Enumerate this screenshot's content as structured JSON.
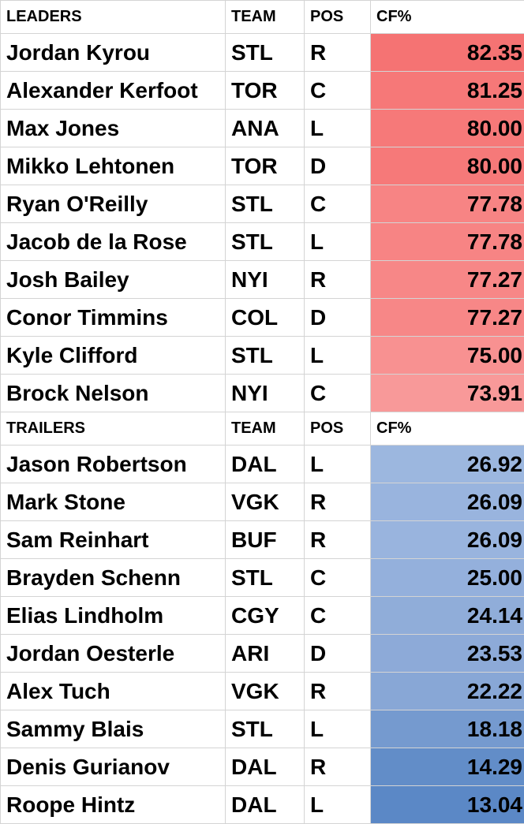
{
  "leaders": {
    "header": {
      "name": "LEADERS",
      "team": "TEAM",
      "pos": "POS",
      "cf": "CF%"
    },
    "rows": [
      {
        "name": "Jordan Kyrou",
        "team": "STL",
        "pos": "R",
        "cf": "82.35",
        "color": "#f57373"
      },
      {
        "name": "Alexander Kerfoot",
        "team": "TOR",
        "pos": "C",
        "cf": "81.25",
        "color": "#f67878"
      },
      {
        "name": "Max Jones",
        "team": "ANA",
        "pos": "L",
        "cf": "80.00",
        "color": "#f67979"
      },
      {
        "name": "Mikko Lehtonen",
        "team": "TOR",
        "pos": "D",
        "cf": "80.00",
        "color": "#f67979"
      },
      {
        "name": "Ryan O'Reilly",
        "team": "STL",
        "pos": "C",
        "cf": "77.78",
        "color": "#f78484"
      },
      {
        "name": "Jacob de la Rose",
        "team": "STL",
        "pos": "L",
        "cf": "77.78",
        "color": "#f78484"
      },
      {
        "name": "Josh Bailey",
        "team": "NYI",
        "pos": "R",
        "cf": "77.27",
        "color": "#f78787"
      },
      {
        "name": "Conor Timmins",
        "team": "COL",
        "pos": "D",
        "cf": "77.27",
        "color": "#f78787"
      },
      {
        "name": "Kyle Clifford",
        "team": "STL",
        "pos": "L",
        "cf": "75.00",
        "color": "#f89191"
      },
      {
        "name": "Brock Nelson",
        "team": "NYI",
        "pos": "C",
        "cf": "73.91",
        "color": "#f89999"
      }
    ]
  },
  "trailers": {
    "header": {
      "name": "TRAILERS",
      "team": "TEAM",
      "pos": "POS",
      "cf": "CF%"
    },
    "rows": [
      {
        "name": "Jason Robertson",
        "team": "DAL",
        "pos": "L",
        "cf": "26.92",
        "color": "#9cb7df"
      },
      {
        "name": "Mark Stone",
        "team": "VGK",
        "pos": "R",
        "cf": "26.09",
        "color": "#99b4de"
      },
      {
        "name": "Sam Reinhart",
        "team": "BUF",
        "pos": "R",
        "cf": "26.09",
        "color": "#99b4de"
      },
      {
        "name": "Brayden Schenn",
        "team": "STL",
        "pos": "C",
        "cf": "25.00",
        "color": "#94b0dc"
      },
      {
        "name": "Elias Lindholm",
        "team": "CGY",
        "pos": "C",
        "cf": "24.14",
        "color": "#90add9"
      },
      {
        "name": "Jordan Oesterle",
        "team": "ARI",
        "pos": "D",
        "cf": "23.53",
        "color": "#8daad8"
      },
      {
        "name": "Alex Tuch",
        "team": "VGK",
        "pos": "R",
        "cf": "22.22",
        "color": "#88a7d6"
      },
      {
        "name": "Sammy Blais",
        "team": "STL",
        "pos": "L",
        "cf": "18.18",
        "color": "#759acf"
      },
      {
        "name": "Denis Gurianov",
        "team": "DAL",
        "pos": "R",
        "cf": "14.29",
        "color": "#628dc8"
      },
      {
        "name": "Roope Hintz",
        "team": "DAL",
        "pos": "L",
        "cf": "13.04",
        "color": "#5b88c6"
      }
    ]
  }
}
